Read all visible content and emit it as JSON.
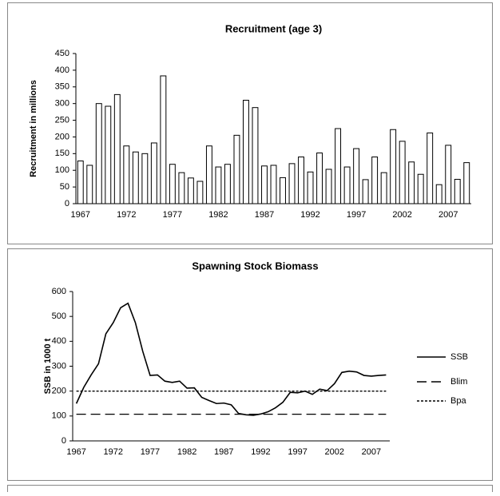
{
  "chart_data": [
    {
      "type": "bar",
      "title": "Recruitment (age 3)",
      "ylabel": "Recruitment in millions",
      "categories": [
        "1967",
        null,
        null,
        null,
        null,
        "1972",
        null,
        null,
        null,
        null,
        "1977",
        null,
        null,
        null,
        null,
        "1982",
        null,
        null,
        null,
        null,
        "1987",
        null,
        null,
        null,
        null,
        "1992",
        null,
        null,
        null,
        null,
        "1997",
        null,
        null,
        null,
        null,
        "2002",
        null,
        null,
        null,
        null,
        "2007",
        null,
        null
      ],
      "values": [
        128,
        115,
        300,
        292,
        327,
        173,
        155,
        150,
        182,
        383,
        118,
        93,
        77,
        67,
        173,
        110,
        118,
        205,
        310,
        288,
        113,
        115,
        78,
        120,
        140,
        95,
        152,
        103,
        225,
        110,
        165,
        72,
        140,
        93,
        222,
        187,
        125,
        88,
        212,
        57,
        175,
        73,
        123
      ],
      "color": "#ffffff",
      "edge_color": "#000000",
      "ylim": [
        0,
        450
      ],
      "yticks": [
        0,
        50,
        100,
        150,
        200,
        250,
        300,
        350,
        400,
        450
      ],
      "grid": false
    },
    {
      "type": "line",
      "title": "Spawning Stock Biomass",
      "ylabel": "SSB in 1000 t",
      "categories": [
        "1967",
        null,
        null,
        null,
        null,
        "1972",
        null,
        null,
        null,
        null,
        "1977",
        null,
        null,
        null,
        null,
        "1982",
        null,
        null,
        null,
        null,
        "1987",
        null,
        null,
        null,
        null,
        "1992",
        null,
        null,
        null,
        null,
        "1997",
        null,
        null,
        null,
        null,
        "2002",
        null,
        null,
        null,
        null,
        "2007",
        null,
        null
      ],
      "series": [
        {
          "name": "SSB",
          "color": "#000000",
          "style": "solid",
          "values": [
            150,
            215,
            265,
            310,
            430,
            475,
            535,
            553,
            475,
            360,
            263,
            265,
            240,
            235,
            240,
            212,
            213,
            175,
            162,
            150,
            152,
            145,
            110,
            105,
            103,
            108,
            117,
            133,
            155,
            195,
            193,
            200,
            187,
            208,
            202,
            230,
            275,
            280,
            277,
            263,
            260,
            263,
            265
          ]
        },
        {
          "name": "Blim",
          "color": "#000000",
          "style": "dashed",
          "values": [
            107,
            107,
            107,
            107,
            107,
            107,
            107,
            107,
            107,
            107,
            107,
            107,
            107,
            107,
            107,
            107,
            107,
            107,
            107,
            107,
            107,
            107,
            107,
            107,
            107,
            107,
            107,
            107,
            107,
            107,
            107,
            107,
            107,
            107,
            107,
            107,
            107,
            107,
            107,
            107,
            107,
            107,
            107
          ]
        },
        {
          "name": "Bpa",
          "color": "#000000",
          "style": "dotted",
          "values": [
            200,
            200,
            200,
            200,
            200,
            200,
            200,
            200,
            200,
            200,
            200,
            200,
            200,
            200,
            200,
            200,
            200,
            200,
            200,
            200,
            200,
            200,
            200,
            200,
            200,
            200,
            200,
            200,
            200,
            200,
            200,
            200,
            200,
            200,
            200,
            200,
            200,
            200,
            200,
            200,
            200,
            200,
            200
          ]
        }
      ],
      "ylim": [
        0,
        600
      ],
      "yticks": [
        0,
        100,
        200,
        300,
        400,
        500,
        600
      ],
      "grid": false,
      "legend": "right"
    }
  ]
}
